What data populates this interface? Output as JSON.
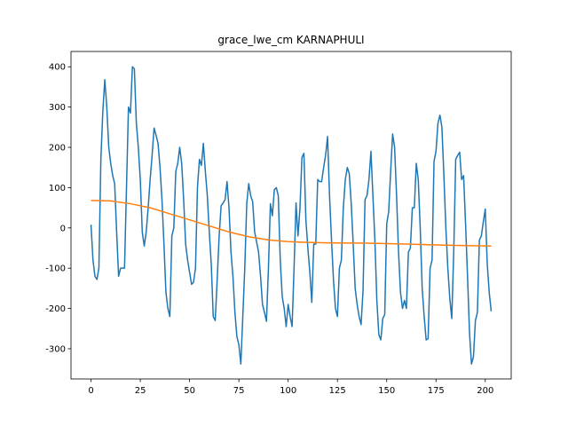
{
  "chart_data": {
    "type": "line",
    "title": "grace_lwe_cm KARNAPHULI",
    "xlim": [
      -10.15,
      213.15
    ],
    "ylim": [
      -375,
      438
    ],
    "xticks": [
      0,
      25,
      50,
      75,
      100,
      125,
      150,
      175,
      200
    ],
    "yticks": [
      -300,
      -200,
      -100,
      0,
      100,
      200,
      300,
      400
    ],
    "series": [
      {
        "color": "#1f77b4",
        "values": [
          8,
          -80,
          -120,
          -128,
          -100,
          170,
          290,
          368,
          300,
          200,
          160,
          130,
          110,
          -10,
          -120,
          -100,
          -100,
          -100,
          100,
          300,
          285,
          400,
          395,
          260,
          200,
          120,
          -10,
          -45,
          -10,
          50,
          120,
          180,
          248,
          230,
          210,
          150,
          70,
          -40,
          -160,
          -200,
          -220,
          -20,
          0,
          140,
          160,
          200,
          160,
          70,
          -40,
          -80,
          -110,
          -140,
          -135,
          -100,
          100,
          170,
          155,
          210,
          140,
          80,
          -10,
          -90,
          -220,
          -230,
          -130,
          -20,
          55,
          62,
          70,
          115,
          50,
          -60,
          -120,
          -210,
          -270,
          -290,
          -338,
          -220,
          -100,
          60,
          110,
          80,
          65,
          -10,
          -35,
          -60,
          -120,
          -190,
          -210,
          -232,
          -100,
          60,
          30,
          95,
          100,
          80,
          -80,
          -170,
          -200,
          -245,
          -190,
          -220,
          -245,
          -100,
          62,
          -20,
          50,
          175,
          185,
          20,
          -50,
          -110,
          -185,
          -40,
          -40,
          120,
          115,
          115,
          150,
          180,
          227,
          80,
          -30,
          -130,
          -200,
          -220,
          -100,
          -80,
          50,
          120,
          150,
          135,
          60,
          -40,
          -150,
          -190,
          -220,
          -240,
          -155,
          70,
          80,
          120,
          190,
          80,
          -30,
          -180,
          -265,
          -278,
          -225,
          -215,
          10,
          40,
          140,
          233,
          200,
          80,
          -60,
          -160,
          -200,
          -180,
          -200,
          -60,
          -50,
          50,
          50,
          160,
          120,
          0,
          -150,
          -220,
          -278,
          -275,
          -100,
          -80,
          165,
          190,
          260,
          280,
          250,
          130,
          0,
          -100,
          -175,
          -225,
          -60,
          170,
          180,
          188,
          120,
          130,
          10,
          -120,
          -260,
          -338,
          -320,
          -230,
          -210,
          -30,
          -20,
          15,
          47,
          -90,
          -160,
          -207
        ]
      },
      {
        "color": "#ff7f0e",
        "x": [
          0,
          10,
          20,
          30,
          40,
          50,
          60,
          70,
          80,
          90,
          100,
          110,
          120,
          140,
          160,
          180,
          203
        ],
        "values": [
          68,
          67,
          60,
          50,
          35,
          20,
          5,
          -10,
          -22,
          -30,
          -34,
          -36,
          -37,
          -38,
          -40,
          -43,
          -45
        ]
      }
    ]
  }
}
